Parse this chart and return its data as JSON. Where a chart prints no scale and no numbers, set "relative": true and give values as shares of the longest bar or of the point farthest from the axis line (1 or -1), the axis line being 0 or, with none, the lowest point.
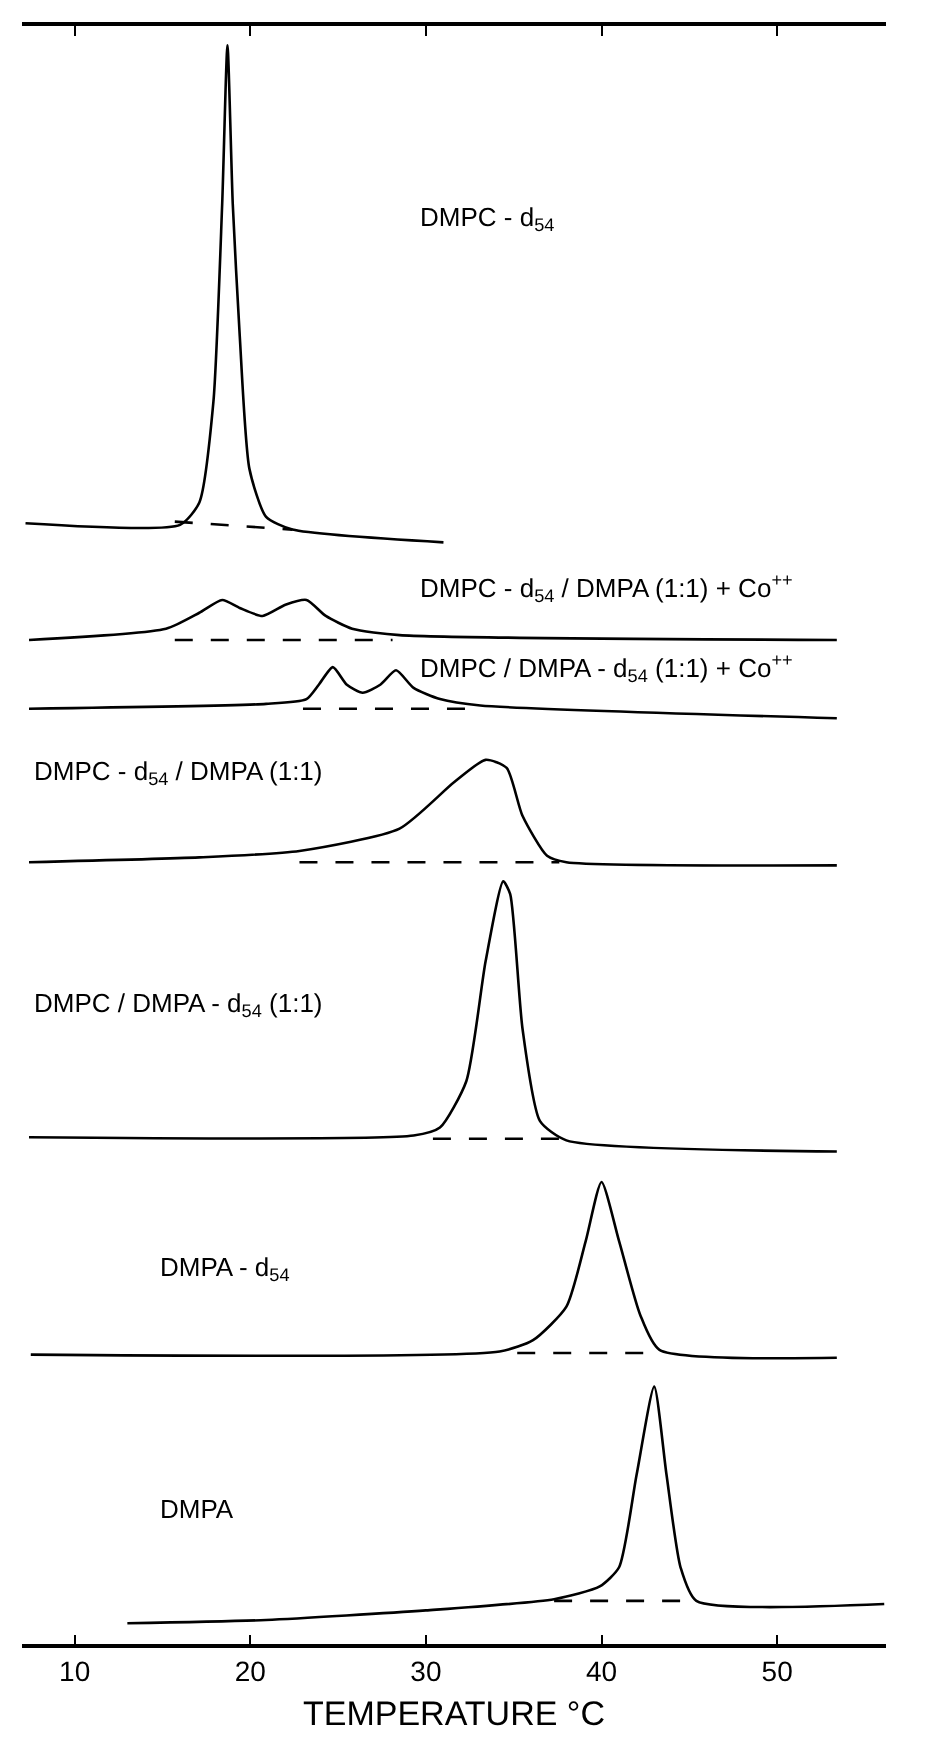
{
  "chart_data": {
    "type": "line",
    "relative": true,
    "xlabel": "TEMPERATURE °C",
    "xlim": [
      7,
      56.2
    ],
    "xticks": [
      10,
      20,
      30,
      40,
      50
    ],
    "marker": "none",
    "tick_labels": "x",
    "annotations": [
      "DMPC - d$_{54}$",
      "DMPC - d$_{54}$ / DMPA (1:1) + Co$^{++}$",
      "DMPC / DMPA - d$_{54}$ (1:1) + Co$^{++}$",
      "DMPC - d$_{54}$ / DMPA (1:1)",
      "DMPC / DMPA - d$_{54}$ (1:1)",
      "DMPA - d$_{54}$",
      "DMPA"
    ],
    "series": [
      {
        "color": "#000000",
        "x": [
          7.2,
          16.0,
          17.1,
          17.9,
          18.4,
          18.7,
          19.0,
          19.4,
          19.95,
          20.9,
          22.4,
          31.0
        ],
        "values": [
          0.701,
          0.7,
          0.714,
          0.777,
          0.901,
          1.0,
          0.901,
          0.818,
          0.735,
          0.705,
          0.697,
          0.689
        ]
      },
      {
        "color": "#000000",
        "x": [
          7.4,
          15.2,
          17.1,
          18.4,
          19.4,
          20.7,
          22.0,
          23.2,
          24.3,
          25.8,
          28.5,
          53.4
        ],
        "values": [
          0.628,
          0.635,
          0.645,
          0.653,
          0.648,
          0.643,
          0.65,
          0.653,
          0.643,
          0.635,
          0.631,
          0.628
        ]
      },
      {
        "color": "#000000",
        "x": [
          7.4,
          20.9,
          23.2,
          23.9,
          24.7,
          25.5,
          26.4,
          27.4,
          28.3,
          29.3,
          30.8,
          33.1,
          53.4
        ],
        "values": [
          0.585,
          0.588,
          0.591,
          0.6,
          0.611,
          0.6,
          0.595,
          0.6,
          0.609,
          0.598,
          0.591,
          0.587,
          0.579
        ]
      },
      {
        "color": "#000000",
        "x": [
          7.4,
          17.1,
          22.8,
          28.5,
          31.6,
          33.4,
          34.6,
          35.5,
          36.9,
          38.0,
          53.4
        ],
        "values": [
          0.489,
          0.492,
          0.496,
          0.51,
          0.539,
          0.553,
          0.548,
          0.518,
          0.493,
          0.489,
          0.487
        ]
      },
      {
        "color": "#000000",
        "x": [
          7.4,
          29.3,
          30.8,
          32.3,
          33.4,
          34.4,
          34.8,
          35.5,
          36.5,
          38.0,
          53.4
        ],
        "values": [
          0.317,
          0.318,
          0.323,
          0.352,
          0.427,
          0.477,
          0.469,
          0.385,
          0.327,
          0.315,
          0.308
        ]
      },
      {
        "color": "#000000",
        "x": [
          7.5,
          34.2,
          36.1,
          38.0,
          39.1,
          40.0,
          41.0,
          42.2,
          43.3,
          53.4
        ],
        "values": [
          0.181,
          0.183,
          0.19,
          0.211,
          0.252,
          0.289,
          0.252,
          0.206,
          0.184,
          0.179
        ]
      },
      {
        "color": "#000000",
        "x": [
          13.0,
          20.9,
          30.0,
          37.3,
          39.9,
          41.0,
          42.0,
          43.0,
          43.7,
          44.5,
          45.4,
          56.1
        ],
        "values": [
          0.013,
          0.015,
          0.021,
          0.028,
          0.036,
          0.048,
          0.106,
          0.161,
          0.106,
          0.048,
          0.027,
          0.025
        ]
      },
      {
        "color": "#000000",
        "line_style": "dashed",
        "x": [
          15.7,
          22.4
        ],
        "values": [
          0.702,
          0.697
        ]
      },
      {
        "color": "#000000",
        "line_style": "dashed",
        "x": [
          15.7,
          28.1
        ],
        "values": [
          0.628,
          0.628
        ]
      },
      {
        "color": "#000000",
        "line_style": "dashed",
        "x": [
          23.0,
          33.1
        ],
        "values": [
          0.585,
          0.585
        ]
      },
      {
        "color": "#000000",
        "line_style": "dashed",
        "x": [
          22.8,
          37.6
        ],
        "values": [
          0.489,
          0.489
        ]
      },
      {
        "color": "#000000",
        "line_style": "dashed",
        "x": [
          30.4,
          37.6
        ],
        "values": [
          0.316,
          0.316
        ]
      },
      {
        "color": "#000000",
        "line_style": "dashed",
        "x": [
          35.2,
          43.3
        ],
        "values": [
          0.182,
          0.182
        ]
      },
      {
        "color": "#000000",
        "line_style": "dashed",
        "x": [
          37.3,
          45.4
        ],
        "values": [
          0.027,
          0.027
        ]
      }
    ]
  }
}
